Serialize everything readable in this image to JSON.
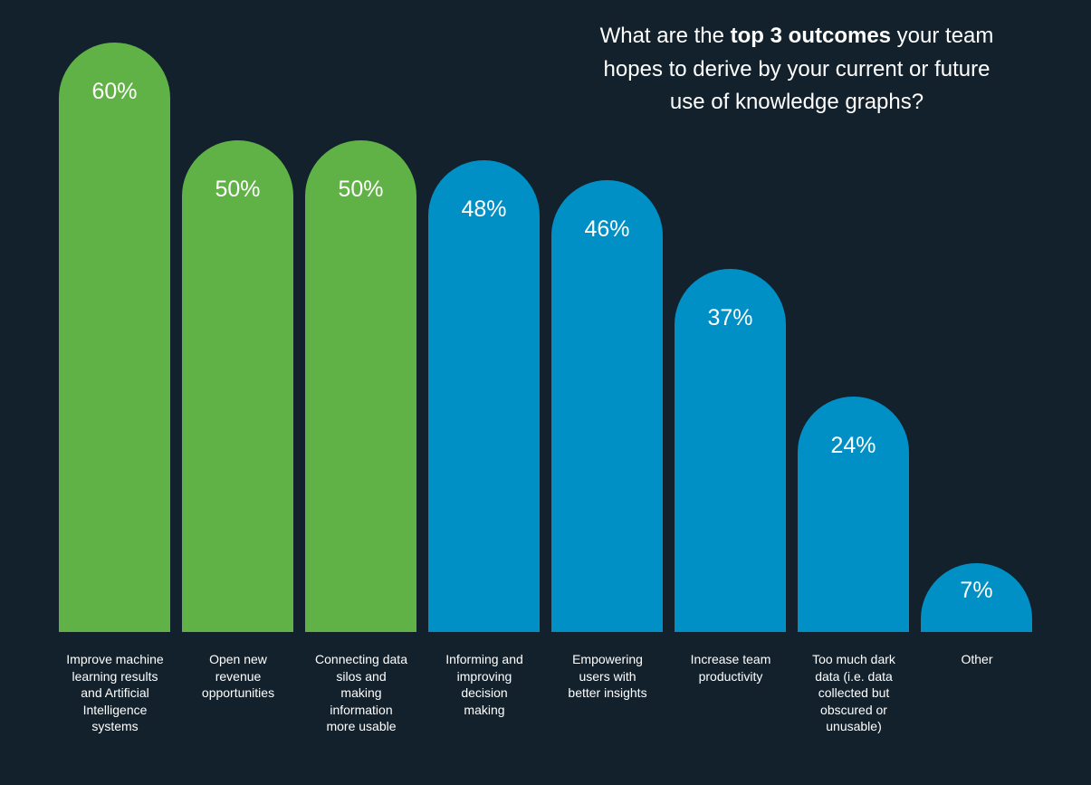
{
  "background": "#12212c",
  "text_color": "#ffffff",
  "title": {
    "prefix": "What are the ",
    "bold": "top 3 outcomes",
    "suffix": " your team hopes to derive by your current or future use of knowledge graphs?"
  },
  "chart_data": {
    "type": "bar",
    "title": "What are the top 3 outcomes your team hopes to derive by your current or future use of knowledge graphs?",
    "xlabel": "",
    "ylabel": "",
    "ylim": [
      0,
      64
    ],
    "grid": false,
    "legend": false,
    "value_suffix": "%",
    "colors": {
      "green": "#61b246",
      "blue": "#0090c6"
    },
    "categories": [
      "Improve machine learning results and Artificial Intelligence systems",
      "Open new revenue opportunities",
      "Connecting data silos and making information more usable",
      "Informing and improving decision making",
      "Empowering users with better insights",
      "Increase team productivity",
      "Too much dark data (i.e. data collected but obscured or unusable)",
      "Other"
    ],
    "values": [
      60,
      50,
      50,
      48,
      46,
      37,
      24,
      7
    ],
    "bars": [
      {
        "slug": "improve-machine-learning",
        "label": "Improve machine learning results and Artificial Intelligence systems",
        "label_lines": [
          "Improve machine",
          "learning results",
          "and Artificial",
          "Intelligence",
          "systems"
        ],
        "value": 60,
        "display": "60%",
        "color": "green"
      },
      {
        "slug": "open-new-revenue",
        "label": "Open new revenue opportunities",
        "label_lines": [
          "Open new",
          "revenue",
          "opportunities"
        ],
        "value": 50,
        "display": "50%",
        "color": "green"
      },
      {
        "slug": "connecting-data-silos",
        "label": "Connecting data silos and making information more usable",
        "label_lines": [
          "Connecting data",
          "silos and",
          "making",
          "information",
          "more usable"
        ],
        "value": 50,
        "display": "50%",
        "color": "green"
      },
      {
        "slug": "informing-decision-making",
        "label": "Informing and improving decision making",
        "label_lines": [
          "Informing and",
          "improving",
          "decision",
          "making"
        ],
        "value": 48,
        "display": "48%",
        "color": "blue"
      },
      {
        "slug": "empowering-users",
        "label": "Empowering users with better insights",
        "label_lines": [
          "Empowering",
          "users with",
          "better insights"
        ],
        "value": 46,
        "display": "46%",
        "color": "blue"
      },
      {
        "slug": "increase-team-productivity",
        "label": "Increase team productivity",
        "label_lines": [
          "Increase team",
          "productivity"
        ],
        "value": 37,
        "display": "37%",
        "color": "blue"
      },
      {
        "slug": "too-much-dark-data",
        "label": "Too much dark data (i.e. data collected but obscured or unusable)",
        "label_lines": [
          "Too much dark",
          "data (i.e. data",
          "collected but",
          "obscured or",
          "unusable)"
        ],
        "value": 24,
        "display": "24%",
        "color": "blue"
      },
      {
        "slug": "other",
        "label": "Other",
        "label_lines": [
          "Other"
        ],
        "value": 7,
        "display": "7%",
        "color": "blue"
      }
    ]
  }
}
